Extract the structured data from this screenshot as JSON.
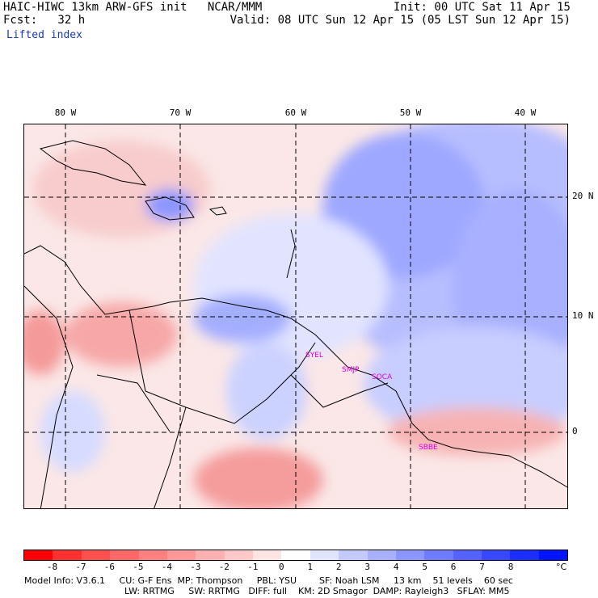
{
  "header": {
    "title_left": "HAIC-HIWC 13km ARW-GFS init   NCAR/MMM",
    "fcst": "Fcst:   32 h",
    "field": "Lifted index",
    "init": "Init: 00 UTC Sat 11 Apr 15",
    "valid": "Valid: 08 UTC Sun 12 Apr 15 (05 LST Sun 12 Apr 15)"
  },
  "longitudes": [
    "80 W",
    "70 W",
    "60 W",
    "50 W",
    "40 W"
  ],
  "latitudes": [
    "20 N",
    "10 N",
    "0"
  ],
  "stations": [
    "SYEL",
    "SMJP",
    "SOCA",
    "SBBE"
  ],
  "colorbar": {
    "ticks": [
      "-8",
      "-7",
      "-6",
      "-5",
      "-4",
      "-3",
      "-2",
      "-1",
      "0",
      "1",
      "2",
      "3",
      "4",
      "5",
      "6",
      "7",
      "8"
    ],
    "unit": "°C",
    "colors": [
      "#ff0000",
      "#ff3030",
      "#ff5050",
      "#ff6868",
      "#ff8080",
      "#ff9898",
      "#ffb0b0",
      "#ffc8c8",
      "#ffe4e4",
      "#ffffff",
      "#e0e4ff",
      "#c4caff",
      "#a8b0ff",
      "#8c96ff",
      "#707cff",
      "#5462ff",
      "#3848ff",
      "#1c2eff",
      "#0014ff"
    ]
  },
  "footer": {
    "line1": "Model Info: V3.6.1     CU: G-F Ens  MP: Thompson     PBL: YSU        SF: Noah LSM     13 km    51 levels    60 sec",
    "line2": "LW: RRTMG     SW: RRTMG   DIFF: full    KM: 2D Smagor  DAMP: Rayleigh3   SFLAY: MM5"
  }
}
